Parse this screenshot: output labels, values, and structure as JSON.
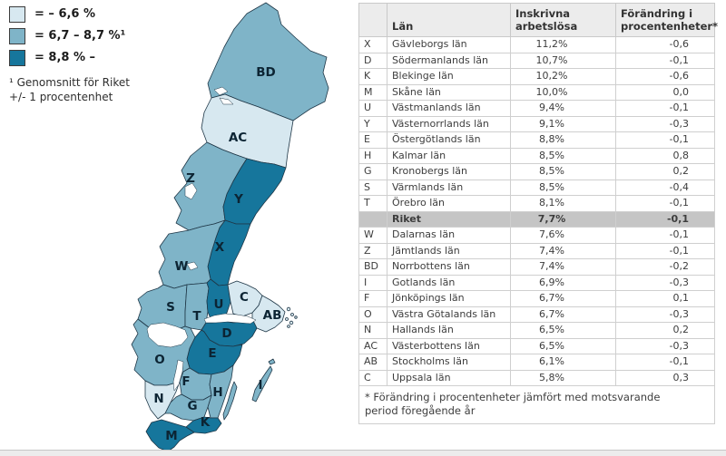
{
  "colors": {
    "band_low": "#d7e8f0",
    "band_mid": "#7fb4c8",
    "band_high": "#16769c",
    "map_border": "#1f3747"
  },
  "legend": {
    "items": [
      {
        "key": "low",
        "label": "= – 6,6 %"
      },
      {
        "key": "mid",
        "label": "= 6,7 – 8,7 %¹"
      },
      {
        "key": "high",
        "label": "= 8,8 % –"
      }
    ],
    "footnote_lines": [
      "¹ Genomsnitt för Riket",
      "+/- 1 procentenhet"
    ]
  },
  "map": {
    "regions": [
      {
        "code": "BD",
        "band": "mid"
      },
      {
        "code": "AC",
        "band": "low"
      },
      {
        "code": "Z",
        "band": "mid"
      },
      {
        "code": "Y",
        "band": "high"
      },
      {
        "code": "X",
        "band": "high"
      },
      {
        "code": "W",
        "band": "mid"
      },
      {
        "code": "S",
        "band": "mid"
      },
      {
        "code": "T",
        "band": "mid"
      },
      {
        "code": "U",
        "band": "high"
      },
      {
        "code": "C",
        "band": "low"
      },
      {
        "code": "AB",
        "band": "low"
      },
      {
        "code": "D",
        "band": "high"
      },
      {
        "code": "E",
        "band": "high"
      },
      {
        "code": "O",
        "band": "mid"
      },
      {
        "code": "F",
        "band": "mid"
      },
      {
        "code": "N",
        "band": "low"
      },
      {
        "code": "G",
        "band": "mid"
      },
      {
        "code": "H",
        "band": "mid"
      },
      {
        "code": "K",
        "band": "high"
      },
      {
        "code": "M",
        "band": "high"
      },
      {
        "code": "I",
        "band": "mid"
      }
    ]
  },
  "chart_data": {
    "type": "table",
    "columns": {
      "code": "",
      "name": "Län",
      "value": "Inskrivna arbetslösa",
      "change": "Förändring i procentenheter*"
    },
    "rows": [
      {
        "code": "X",
        "name": "Gävleborgs län",
        "value": "11,2%",
        "change": "-0,6"
      },
      {
        "code": "D",
        "name": "Södermanlands län",
        "value": "10,7%",
        "change": "-0,1"
      },
      {
        "code": "K",
        "name": "Blekinge län",
        "value": "10,2%",
        "change": "-0,6"
      },
      {
        "code": "M",
        "name": "Skåne län",
        "value": "10,0%",
        "change": "0,0"
      },
      {
        "code": "U",
        "name": "Västmanlands län",
        "value": "9,4%",
        "change": "-0,1"
      },
      {
        "code": "Y",
        "name": "Västernorrlands län",
        "value": "9,1%",
        "change": "-0,3"
      },
      {
        "code": "E",
        "name": "Östergötlands län",
        "value": "8,8%",
        "change": "-0,1"
      },
      {
        "code": "H",
        "name": "Kalmar län",
        "value": "8,5%",
        "change": "0,8"
      },
      {
        "code": "G",
        "name": "Kronobergs län",
        "value": "8,5%",
        "change": "0,2"
      },
      {
        "code": "S",
        "name": "Värmlands län",
        "value": "8,5%",
        "change": "-0,4"
      },
      {
        "code": "T",
        "name": "Örebro län",
        "value": "8,1%",
        "change": "-0,1"
      },
      {
        "code": "",
        "name": "Riket",
        "value": "7,7%",
        "change": "-0,1",
        "is_total": true
      },
      {
        "code": "W",
        "name": "Dalarnas län",
        "value": "7,6%",
        "change": "-0,1"
      },
      {
        "code": "Z",
        "name": "Jämtlands län",
        "value": "7,4%",
        "change": "-0,1"
      },
      {
        "code": "BD",
        "name": "Norrbottens län",
        "value": "7,4%",
        "change": "-0,2"
      },
      {
        "code": "I",
        "name": "Gotlands län",
        "value": "6,9%",
        "change": "-0,3"
      },
      {
        "code": "F",
        "name": "Jönköpings län",
        "value": "6,7%",
        "change": "0,1"
      },
      {
        "code": "O",
        "name": "Västra Götalands län",
        "value": "6,7%",
        "change": "-0,3"
      },
      {
        "code": "N",
        "name": "Hallands län",
        "value": "6,5%",
        "change": "0,2"
      },
      {
        "code": "AC",
        "name": "Västerbottens län",
        "value": "6,5%",
        "change": "-0,3"
      },
      {
        "code": "AB",
        "name": "Stockholms län",
        "value": "6,1%",
        "change": "-0,1"
      },
      {
        "code": "C",
        "name": "Uppsala län",
        "value": "5,8%",
        "change": "0,3"
      }
    ],
    "footnote": "* Förändring i procentenheter jämfört med motsvarande period föregående år"
  }
}
